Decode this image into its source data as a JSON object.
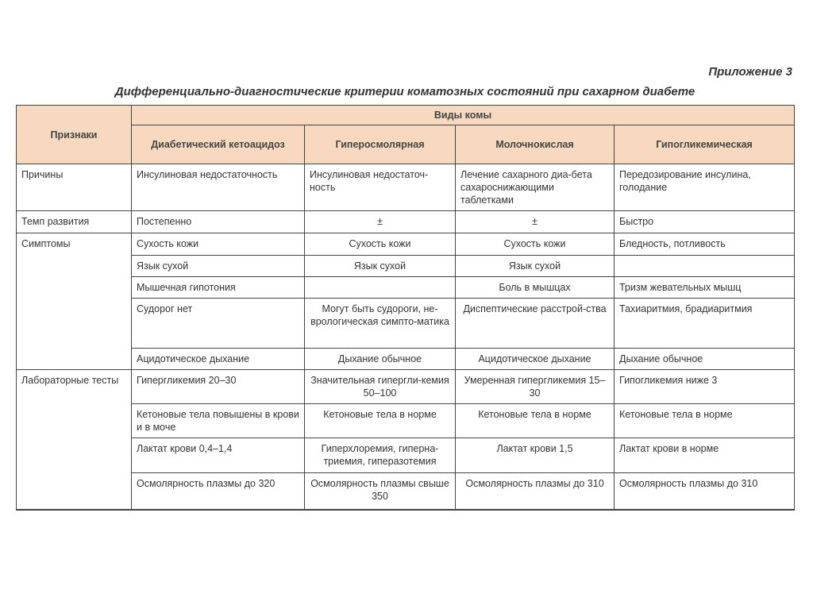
{
  "appendix": "Приложение 3",
  "title": "Дифференциально-диагностические критерии коматозных состояний при сахарном диабете",
  "header": {
    "signs": "Признаки",
    "types_group": "Виды комы",
    "columns": [
      "Диабетический кетоацидоз",
      "Гиперосмолярная",
      "Молочнокислая",
      "Гипогликемическая"
    ]
  },
  "groups": [
    {
      "label": "Причины",
      "rows": [
        [
          "Инсулиновая недостаточность",
          "Инсулиновая недостаточ-ность",
          "Лечение сахарного диа-бета сахароснижающими таблетками",
          "Передозирование инсулина, голодание"
        ]
      ]
    },
    {
      "label": "Темп развития",
      "rows": [
        [
          "Постепенно",
          "±",
          "±",
          "Быстро"
        ]
      ]
    },
    {
      "label": "Симптомы",
      "rows": [
        [
          "Сухость кожи",
          "Сухость кожи",
          "Сухость кожи",
          "Бледность, потливость"
        ],
        [
          "Язык сухой",
          "Язык сухой",
          "Язык сухой",
          ""
        ],
        [
          "Мышечная гипотония",
          "",
          "Боль в мышцах",
          "Тризм жевательных мышц"
        ],
        [
          "Судорог нет",
          "Могут быть судороги, не-врологическая симпто-матика",
          "Диспептические расстрой-ства",
          "Тахиаритмия, брадиаритмия"
        ],
        [
          "Ацидотическое дыхание",
          "Дыхание обычное",
          "Ацидотическое дыхание",
          "Дыхание обычное"
        ]
      ]
    },
    {
      "label": "Лабораторные тесты",
      "rows": [
        [
          "Гипергликемия 20–30",
          "Значительная гипергли-кемия 50–100",
          "Умеренная гипергликемия 15–30",
          "Гипогликемия ниже 3"
        ],
        [
          "Кетоновые тела повышены в крови и в моче",
          "Кетоновые тела в норме",
          "Кетоновые тела в норме",
          "Кетоновые тела в норме"
        ],
        [
          "Лактат крови 0,4–1,4",
          "Гиперхлоремия, гиперна-триемия, гиперазотемия",
          "Лактат крови 1,5",
          "Лактат крови в норме"
        ],
        [
          "Осмолярность плазмы до 320",
          "Осмолярность плазмы свыше 350",
          "Осмолярность плазмы до 310",
          "Осмолярность плазмы до 310"
        ]
      ]
    }
  ],
  "colors": {
    "header_bg": "#f6d9bf",
    "border": "#444444"
  }
}
